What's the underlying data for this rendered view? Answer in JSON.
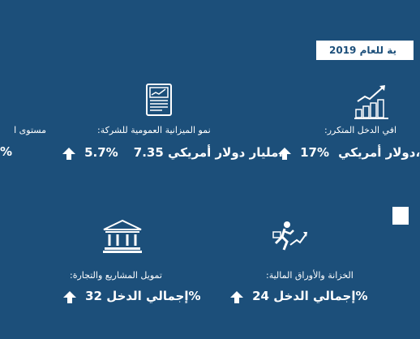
{
  "header": {
    "year_title": "ية للعام 2019"
  },
  "cards": [
    {
      "label": "مستوى ا",
      "value": "%"
    },
    {
      "label": "نمو الميزانية العمومية للشركة:",
      "value_a": "7.35 مليار دولار أمريكي،",
      "value_b": "5.7%"
    },
    {
      "label": "افي الدخل المتكرر:",
      "value_a": "دولار أمريكي،",
      "value_b": "17%"
    },
    {
      "label": "تمويل المشاريع والتجارة:",
      "value": "إجمالي الدخل 32%"
    },
    {
      "label": "الخزانة والأوراق المالية:",
      "value": "إجمالي الدخل 24%"
    }
  ],
  "icons": {
    "report": "report-chart-icon",
    "money": "money-growth-icon",
    "bank": "bank-building-icon",
    "runner": "growth-runner-icon"
  },
  "colors": {
    "background": "#1c4f7a",
    "text": "#ffffff"
  }
}
